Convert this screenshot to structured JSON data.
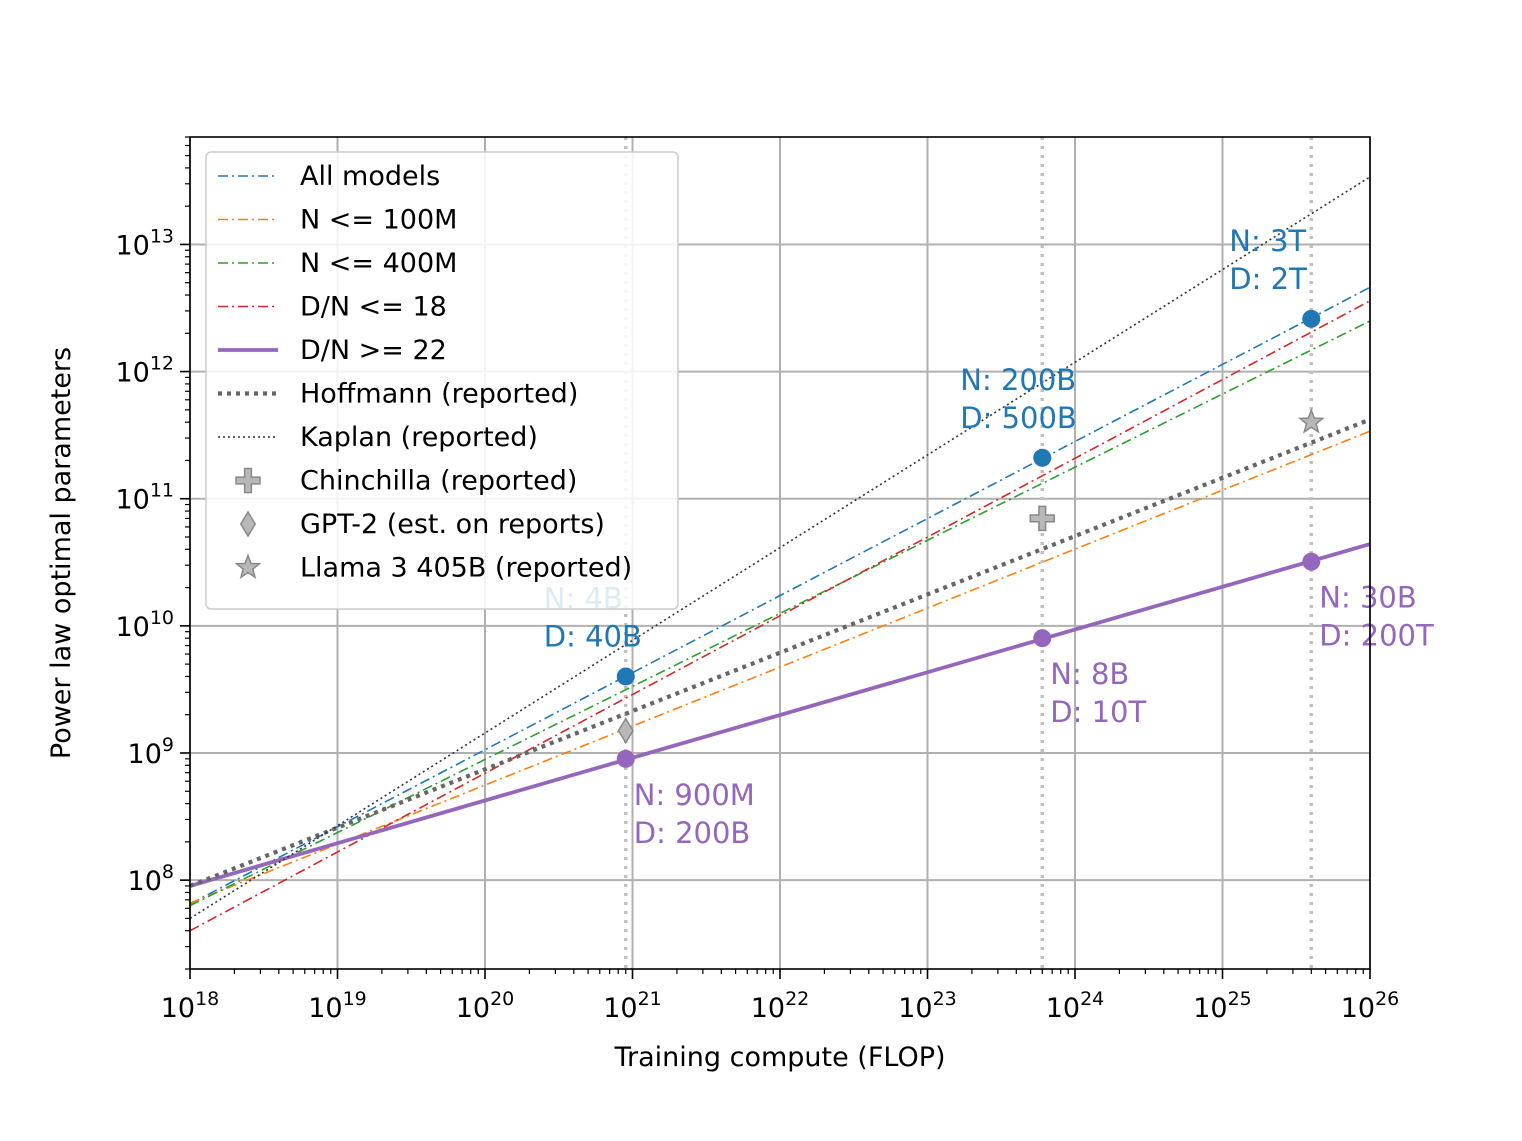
{
  "chart_data": {
    "type": "line",
    "xlabel": "Training compute (FLOP)",
    "ylabel": "Power law optimal parameters",
    "xscale": "log",
    "yscale": "log",
    "xlim": [
      1e+18,
      1e+26
    ],
    "ylim": [
      20000000.0,
      70000000000000.0
    ],
    "grid": true,
    "legend_position": "upper left",
    "x_tick_labels": [
      {
        "base": "10",
        "exp": "18"
      },
      {
        "base": "10",
        "exp": "19"
      },
      {
        "base": "10",
        "exp": "20"
      },
      {
        "base": "10",
        "exp": "21"
      },
      {
        "base": "10",
        "exp": "22"
      },
      {
        "base": "10",
        "exp": "23"
      },
      {
        "base": "10",
        "exp": "24"
      },
      {
        "base": "10",
        "exp": "25"
      },
      {
        "base": "10",
        "exp": "26"
      }
    ],
    "y_tick_labels": [
      {
        "base": "10",
        "exp": "8"
      },
      {
        "base": "10",
        "exp": "9"
      },
      {
        "base": "10",
        "exp": "10"
      },
      {
        "base": "10",
        "exp": "11"
      },
      {
        "base": "10",
        "exp": "12"
      },
      {
        "base": "10",
        "exp": "13"
      }
    ],
    "vlines": [
      9e+20,
      6e+23,
      4e+25
    ],
    "series": [
      {
        "name": "All models",
        "color": "#1f77b4",
        "style": "dashdot",
        "x": [
          1e+18,
          1e+26
        ],
        "y": [
          65000000.0,
          4600000000000.0
        ]
      },
      {
        "name": "N <= 100M",
        "color": "#ff7f0e",
        "style": "dashdot",
        "x": [
          1e+18,
          1e+26
        ],
        "y": [
          66000000.0,
          340000000000.0
        ]
      },
      {
        "name": "N <= 400M",
        "color": "#2ca02c",
        "style": "dashdot",
        "x": [
          1e+18,
          1e+26
        ],
        "y": [
          63000000.0,
          2500000000000.0
        ]
      },
      {
        "name": "D/N <= 18",
        "color": "#d62728",
        "style": "dashdot",
        "x": [
          1e+18,
          1e+26
        ],
        "y": [
          40000000.0,
          3600000000000.0
        ]
      },
      {
        "name": "D/N >= 22",
        "color": "#9467bd",
        "style": "solid",
        "x": [
          1e+18,
          1e+26
        ],
        "y": [
          90000000.0,
          44000000000.0
        ]
      },
      {
        "name": "Hoffmann (reported)",
        "color": "#666666",
        "style": "dotted-thick",
        "x": [
          1e+18,
          1e+26
        ],
        "y": [
          90000000.0,
          420000000000.0
        ]
      },
      {
        "name": "Kaplan (reported)",
        "color": "#333333",
        "style": "dotted-thin",
        "x": [
          1e+18,
          1e+26
        ],
        "y": [
          50000000.0,
          34000000000000.0
        ]
      },
      {
        "name": "Chinchilla (reported)",
        "marker": "plus",
        "color": "#888888",
        "points": [
          {
            "x": 6e+23,
            "y": 70000000000.0
          }
        ]
      },
      {
        "name": "GPT-2 (est. on reports)",
        "marker": "diamond",
        "color": "#888888",
        "points": [
          {
            "x": 9e+20,
            "y": 1500000000.0
          }
        ]
      },
      {
        "name": "Llama 3 405B (reported)",
        "marker": "star",
        "color": "#888888",
        "points": [
          {
            "x": 4e+25,
            "y": 400000000000.0
          }
        ]
      }
    ],
    "highlight_points": [
      {
        "x": 9e+20,
        "y": 4000000000.0,
        "color": "#1f77b4",
        "label": [
          "N: 4B",
          "D: 40B"
        ],
        "label_pos": "above"
      },
      {
        "x": 6e+23,
        "y": 210000000000.0,
        "color": "#1f77b4",
        "label": [
          "N: 200B",
          "D: 500B"
        ],
        "label_pos": "above"
      },
      {
        "x": 4e+25,
        "y": 2600000000000.0,
        "color": "#1f77b4",
        "label": [
          "N: 3T",
          "D: 2T"
        ],
        "label_pos": "above"
      },
      {
        "x": 9e+20,
        "y": 900000000.0,
        "color": "#9467bd",
        "label": [
          "N: 900M",
          "D: 200B"
        ],
        "label_pos": "below"
      },
      {
        "x": 6e+23,
        "y": 8000000000.0,
        "color": "#9467bd",
        "label": [
          "N: 8B",
          "D: 10T"
        ],
        "label_pos": "below"
      },
      {
        "x": 4e+25,
        "y": 32000000000.0,
        "color": "#9467bd",
        "label": [
          "N: 30B",
          "D: 200T"
        ],
        "label_pos": "below"
      }
    ]
  }
}
